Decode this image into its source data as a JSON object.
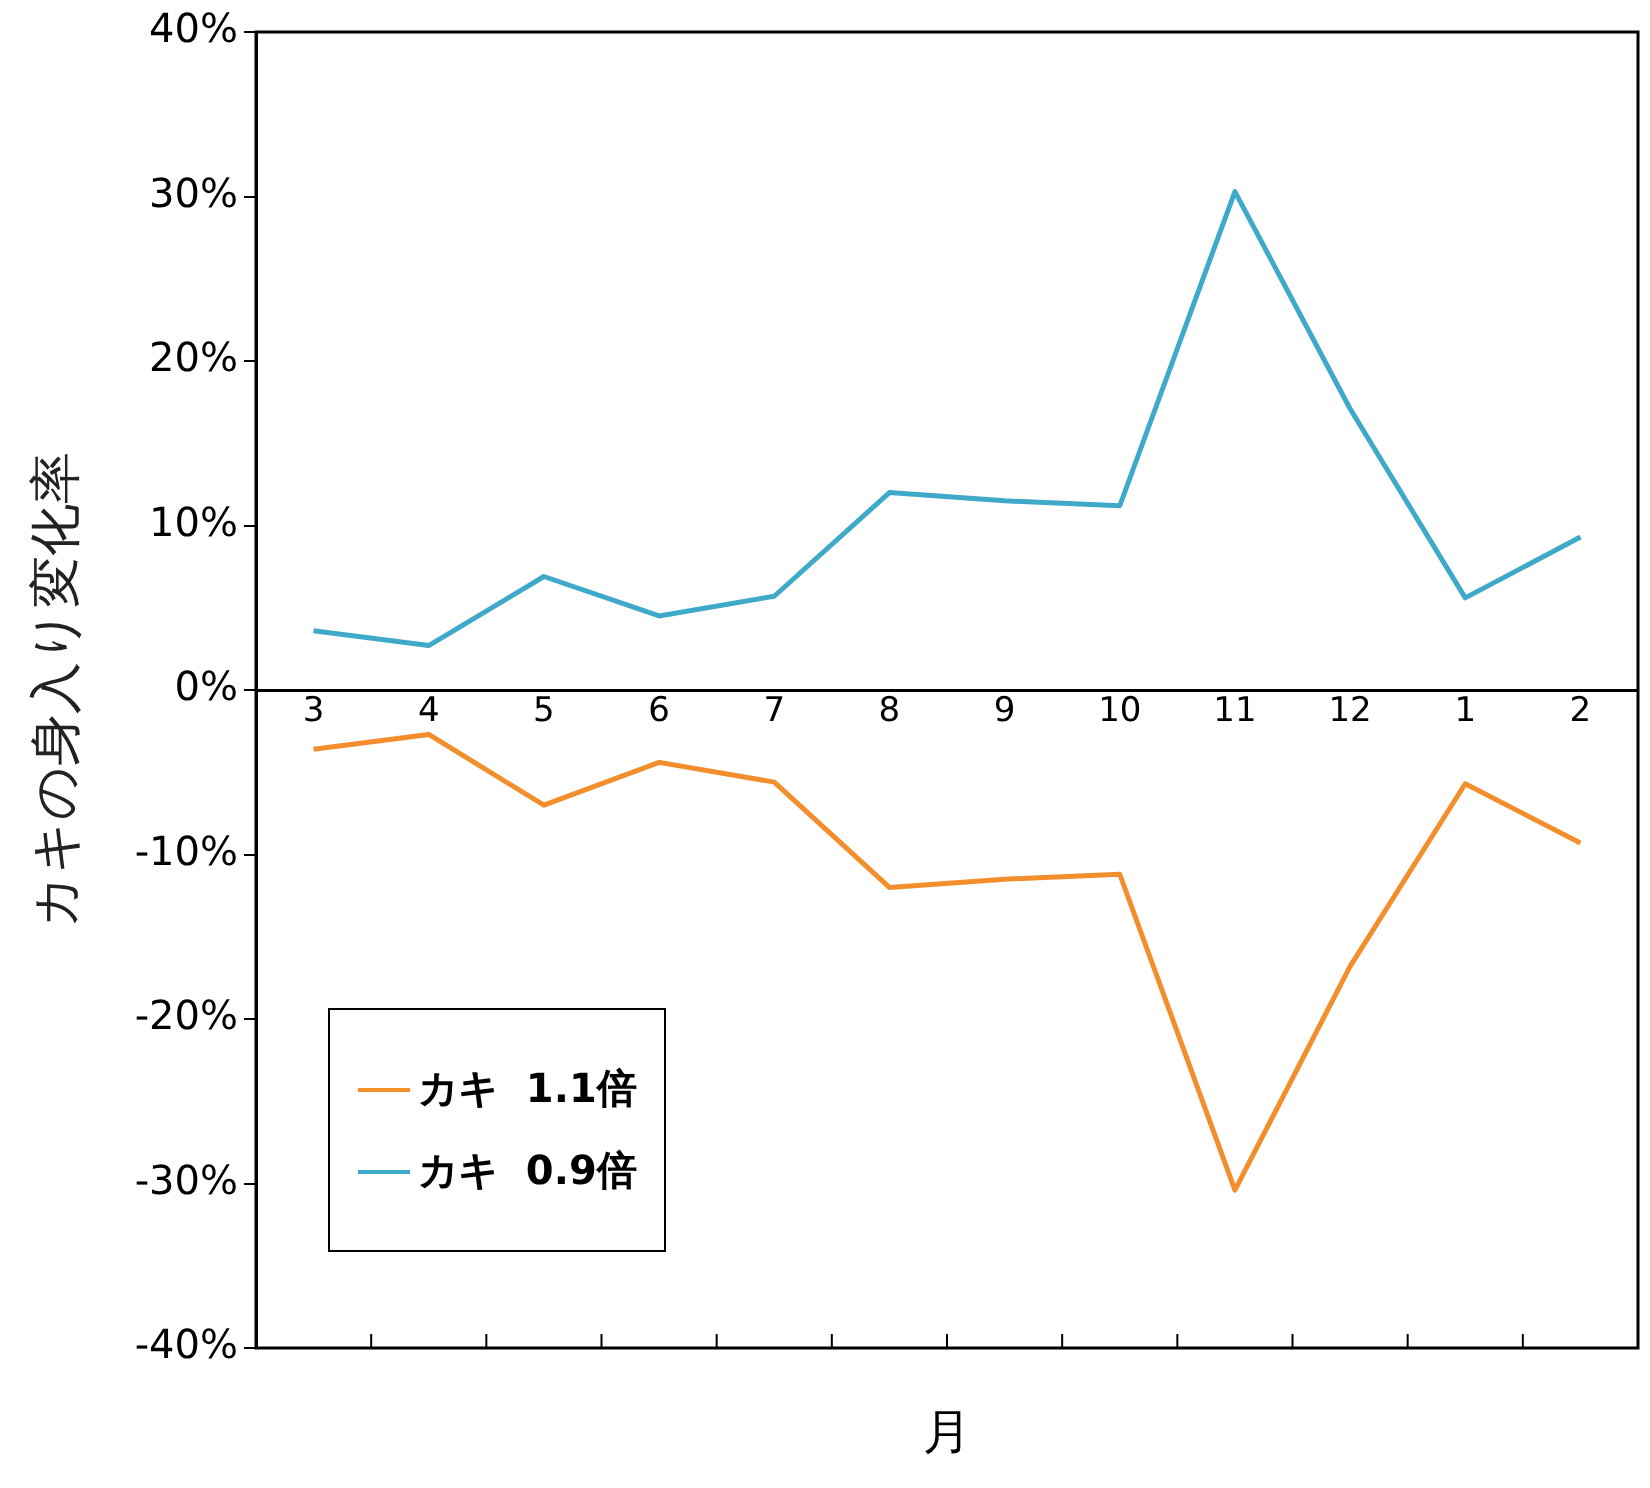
{
  "chart_data": {
    "type": "line",
    "xlabel": "月",
    "ylabel": "カキの身入り変化率",
    "categories": [
      "3",
      "4",
      "5",
      "6",
      "7",
      "8",
      "9",
      "10",
      "11",
      "12",
      "1",
      "2"
    ],
    "series": [
      {
        "name": "カキ  1.1倍",
        "color": "#f28e2b",
        "values": [
          -3.6,
          -2.7,
          -7.0,
          -4.4,
          -5.6,
          -12.0,
          -11.5,
          -11.2,
          -30.4,
          -16.8,
          -5.7,
          -9.3
        ]
      },
      {
        "name": "カキ  0.9倍",
        "color": "#3fa9c9",
        "values": [
          3.6,
          2.7,
          6.9,
          4.5,
          5.7,
          12.0,
          11.5,
          11.2,
          30.3,
          17.1,
          5.6,
          9.3
        ]
      }
    ],
    "ylim": [
      -40,
      40
    ],
    "yticks": [
      {
        "value": -40,
        "label": "-40%"
      },
      {
        "value": -30,
        "label": "-30%"
      },
      {
        "value": -20,
        "label": "-20%"
      },
      {
        "value": -10,
        "label": "-10%"
      },
      {
        "value": 0,
        "label": "0%"
      },
      {
        "value": 10,
        "label": "10%"
      },
      {
        "value": 20,
        "label": "20%"
      },
      {
        "value": 30,
        "label": "30%"
      },
      {
        "value": 40,
        "label": "40%"
      }
    ],
    "grid": false,
    "legend": "bottom left",
    "marker": "none",
    "line_style": "solid"
  }
}
